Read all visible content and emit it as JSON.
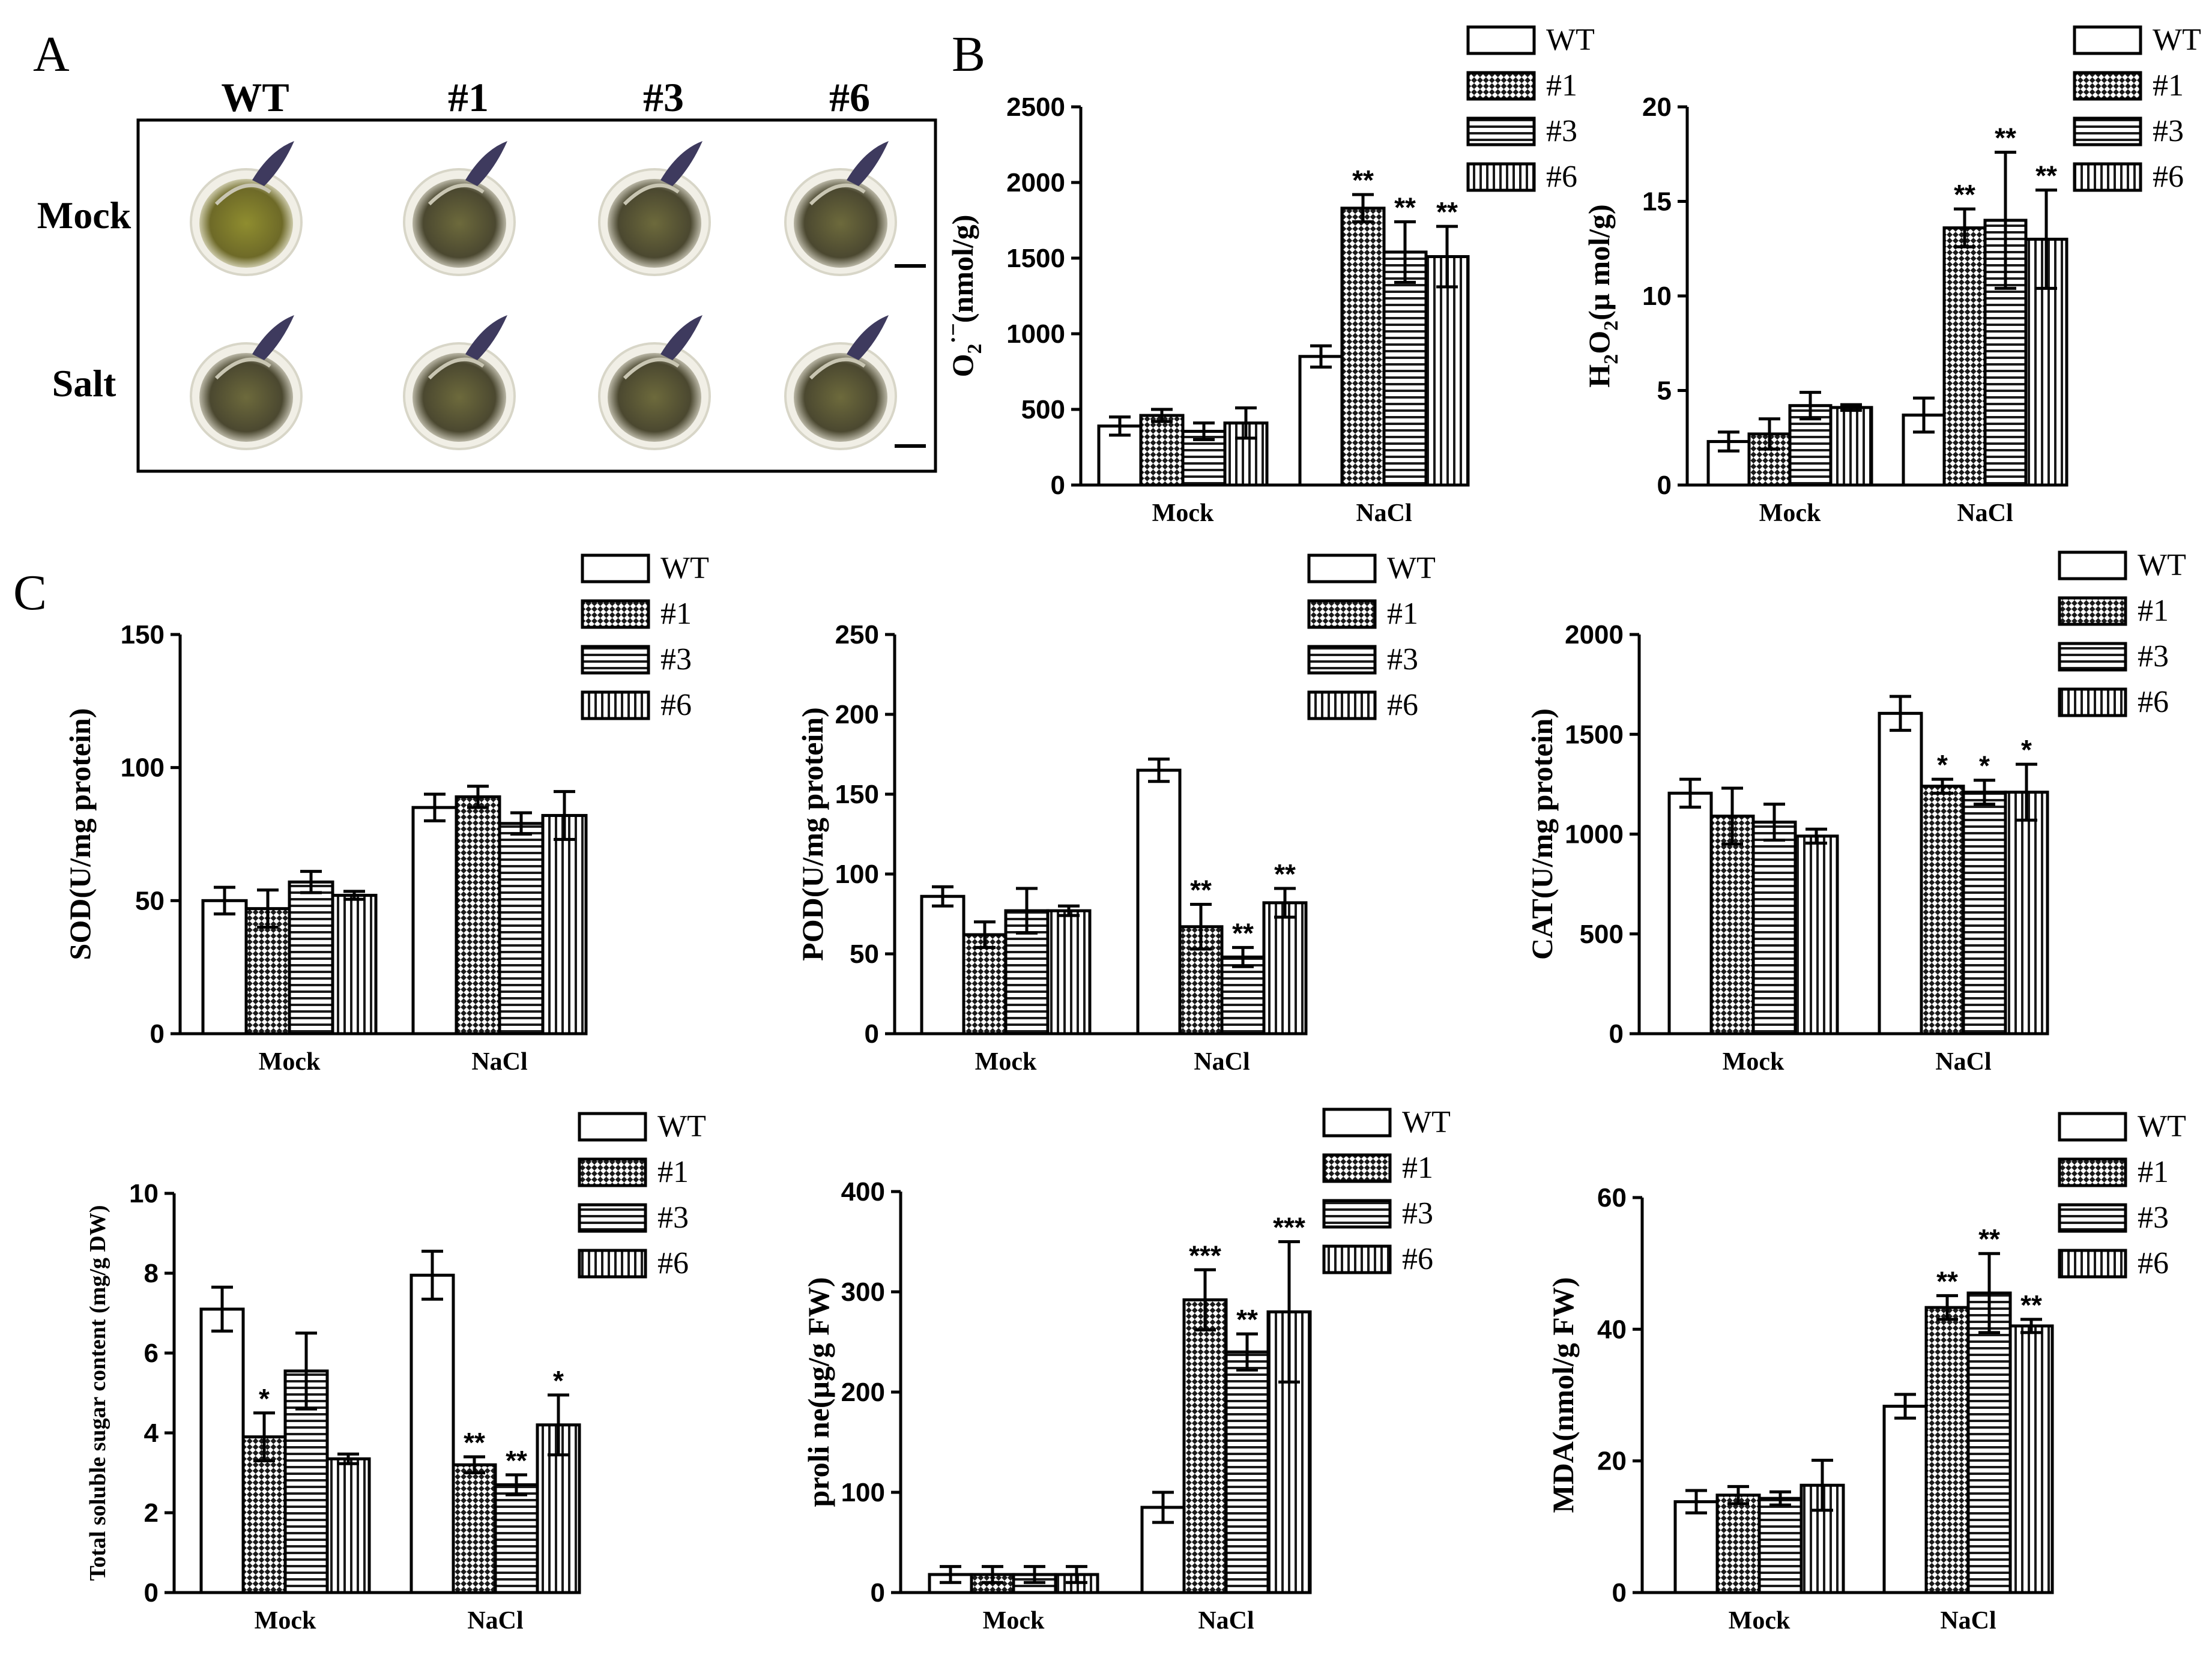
{
  "panel_a": {
    "letter": "A",
    "column_labels": [
      "WT",
      "#1",
      "#3",
      "#6"
    ],
    "row_labels": [
      "Mock",
      "Salt"
    ]
  },
  "panel_b": {
    "letter": "B"
  },
  "panel_c": {
    "letter": "C"
  },
  "legend_entries": [
    "WT",
    "#1",
    "#3",
    "#6"
  ],
  "colors": {
    "ink": "#000000",
    "background": "#ffffff"
  },
  "chart_data": [
    {
      "id": "o2",
      "type": "bar",
      "title": "",
      "ylabel_main": "O",
      "ylabel_sub": "2",
      "ylabel_sup": "·−",
      "ylabel_rest": "(nmol/g)",
      "xlabel": "",
      "categories": [
        "Mock",
        "NaCl"
      ],
      "ylim": [
        0,
        2500
      ],
      "yticks": [
        0,
        500,
        1000,
        1500,
        2000,
        2500
      ],
      "series": [
        {
          "name": "WT",
          "values": [
            390,
            850
          ],
          "errors": [
            60,
            70
          ],
          "annotations": [
            "",
            ""
          ]
        },
        {
          "name": "#1",
          "values": [
            460,
            1830
          ],
          "errors": [
            40,
            90
          ],
          "annotations": [
            "",
            "**"
          ]
        },
        {
          "name": "#3",
          "values": [
            355,
            1540
          ],
          "errors": [
            55,
            200
          ],
          "annotations": [
            "",
            "**"
          ]
        },
        {
          "name": "#6",
          "values": [
            410,
            1510
          ],
          "errors": [
            100,
            200
          ],
          "annotations": [
            "",
            "**"
          ]
        }
      ]
    },
    {
      "id": "h2o2",
      "type": "bar",
      "title": "",
      "ylabel_main": "H",
      "ylabel_sub": "2",
      "ylabel_mid": "O",
      "ylabel_sub2": "2",
      "ylabel_rest": "(μ mol/g)",
      "xlabel": "",
      "categories": [
        "Mock",
        "NaCl"
      ],
      "ylim": [
        0,
        20
      ],
      "yticks": [
        0,
        5,
        10,
        15,
        20
      ],
      "series": [
        {
          "name": "WT",
          "values": [
            2.3,
            3.7
          ],
          "errors": [
            0.5,
            0.9
          ],
          "annotations": [
            "",
            ""
          ]
        },
        {
          "name": "#1",
          "values": [
            2.7,
            13.6
          ],
          "errors": [
            0.8,
            1.0
          ],
          "annotations": [
            "",
            "**"
          ]
        },
        {
          "name": "#3",
          "values": [
            4.2,
            14.0
          ],
          "errors": [
            0.7,
            3.6
          ],
          "annotations": [
            "",
            "**"
          ]
        },
        {
          "name": "#6",
          "values": [
            4.1,
            13.0
          ],
          "errors": [
            0.15,
            2.6
          ],
          "annotations": [
            "",
            "**"
          ]
        }
      ]
    },
    {
      "id": "sod",
      "type": "bar",
      "title": "",
      "ylabel_rest": "SOD(U/mg protein)",
      "xlabel": "",
      "categories": [
        "Mock",
        "NaCl"
      ],
      "ylim": [
        0,
        150
      ],
      "yticks": [
        0,
        50,
        100,
        150
      ],
      "series": [
        {
          "name": "WT",
          "values": [
            50,
            85
          ],
          "errors": [
            5,
            5
          ],
          "annotations": [
            "",
            ""
          ]
        },
        {
          "name": "#1",
          "values": [
            47,
            89
          ],
          "errors": [
            7,
            4
          ],
          "annotations": [
            "",
            ""
          ]
        },
        {
          "name": "#3",
          "values": [
            57,
            79
          ],
          "errors": [
            4,
            4
          ],
          "annotations": [
            "",
            ""
          ]
        },
        {
          "name": "#6",
          "values": [
            52,
            82
          ],
          "errors": [
            1.5,
            9
          ],
          "annotations": [
            "",
            ""
          ]
        }
      ]
    },
    {
      "id": "pod",
      "type": "bar",
      "title": "",
      "ylabel_rest": "POD(U/mg protein)",
      "xlabel": "",
      "categories": [
        "Mock",
        "NaCl"
      ],
      "ylim": [
        0,
        250
      ],
      "yticks": [
        0,
        50,
        100,
        150,
        200,
        250
      ],
      "series": [
        {
          "name": "WT",
          "values": [
            86,
            165
          ],
          "errors": [
            6,
            7
          ],
          "annotations": [
            "",
            ""
          ]
        },
        {
          "name": "#1",
          "values": [
            62,
            67
          ],
          "errors": [
            8,
            14
          ],
          "annotations": [
            "",
            "**"
          ]
        },
        {
          "name": "#3",
          "values": [
            77,
            48
          ],
          "errors": [
            14,
            6
          ],
          "annotations": [
            "",
            "**"
          ]
        },
        {
          "name": "#6",
          "values": [
            77,
            82
          ],
          "errors": [
            3,
            9
          ],
          "annotations": [
            "",
            "**"
          ]
        }
      ]
    },
    {
      "id": "cat",
      "type": "bar",
      "title": "",
      "ylabel_rest": "CAT(U/mg protein)",
      "xlabel": "",
      "categories": [
        "Mock",
        "NaCl"
      ],
      "ylim": [
        0,
        2000
      ],
      "yticks": [
        0,
        500,
        1000,
        1500,
        2000
      ],
      "series": [
        {
          "name": "WT",
          "values": [
            1205,
            1605
          ],
          "errors": [
            70,
            85
          ],
          "annotations": [
            "",
            ""
          ]
        },
        {
          "name": "#1",
          "values": [
            1090,
            1240
          ],
          "errors": [
            140,
            35
          ],
          "annotations": [
            "",
            "*"
          ]
        },
        {
          "name": "#3",
          "values": [
            1060,
            1210
          ],
          "errors": [
            90,
            60
          ],
          "annotations": [
            "",
            "*"
          ]
        },
        {
          "name": "#6",
          "values": [
            990,
            1210
          ],
          "errors": [
            35,
            140
          ],
          "annotations": [
            "",
            "*"
          ]
        }
      ]
    },
    {
      "id": "sugar",
      "type": "bar",
      "title": "",
      "ylabel_rest": "Total soluble sugar content (mg/g DW)",
      "xlabel": "",
      "categories": [
        "Mock",
        "NaCl"
      ],
      "ylim": [
        0,
        10
      ],
      "yticks": [
        0,
        2,
        4,
        6,
        8,
        10
      ],
      "series": [
        {
          "name": "WT",
          "values": [
            7.1,
            7.95
          ],
          "errors": [
            0.55,
            0.6
          ],
          "annotations": [
            "",
            ""
          ]
        },
        {
          "name": "#1",
          "values": [
            3.9,
            3.2
          ],
          "errors": [
            0.6,
            0.2
          ],
          "annotations": [
            "*",
            "**"
          ]
        },
        {
          "name": "#3",
          "values": [
            5.55,
            2.7
          ],
          "errors": [
            0.95,
            0.25
          ],
          "annotations": [
            "",
            "**"
          ]
        },
        {
          "name": "#6",
          "values": [
            3.35,
            4.2
          ],
          "errors": [
            0.12,
            0.75
          ],
          "annotations": [
            "",
            "*"
          ]
        }
      ]
    },
    {
      "id": "proline",
      "type": "bar",
      "title": "",
      "ylabel_rest": "proli ne(μg/g FW)",
      "xlabel": "",
      "categories": [
        "Mock",
        "NaCl"
      ],
      "ylim": [
        0,
        400
      ],
      "yticks": [
        0,
        100,
        200,
        300,
        400
      ],
      "series": [
        {
          "name": "WT",
          "values": [
            18,
            85
          ],
          "errors": [
            8,
            15
          ],
          "annotations": [
            "",
            ""
          ]
        },
        {
          "name": "#1",
          "values": [
            18,
            292
          ],
          "errors": [
            8,
            30
          ],
          "annotations": [
            "",
            "***"
          ]
        },
        {
          "name": "#3",
          "values": [
            18,
            240
          ],
          "errors": [
            8,
            18
          ],
          "annotations": [
            "",
            "**"
          ]
        },
        {
          "name": "#6",
          "values": [
            18,
            280
          ],
          "errors": [
            8,
            70
          ],
          "annotations": [
            "",
            "***"
          ]
        }
      ]
    },
    {
      "id": "mda",
      "type": "bar",
      "title": "",
      "ylabel_rest": "MDA(nmol/g FW)",
      "xlabel": "",
      "categories": [
        "Mock",
        "NaCl"
      ],
      "ylim": [
        0,
        60
      ],
      "yticks": [
        0,
        20,
        40,
        60
      ],
      "series": [
        {
          "name": "WT",
          "values": [
            13.8,
            28.3
          ],
          "errors": [
            1.7,
            1.8
          ],
          "annotations": [
            "",
            ""
          ]
        },
        {
          "name": "#1",
          "values": [
            14.8,
            43.3
          ],
          "errors": [
            1.3,
            1.8
          ],
          "annotations": [
            "",
            "**"
          ]
        },
        {
          "name": "#3",
          "values": [
            14.3,
            45.5
          ],
          "errors": [
            1.0,
            6.0
          ],
          "annotations": [
            "",
            "**"
          ]
        },
        {
          "name": "#6",
          "values": [
            16.3,
            40.5
          ],
          "errors": [
            3.8,
            1.0
          ],
          "annotations": [
            "",
            "**"
          ]
        }
      ]
    }
  ]
}
